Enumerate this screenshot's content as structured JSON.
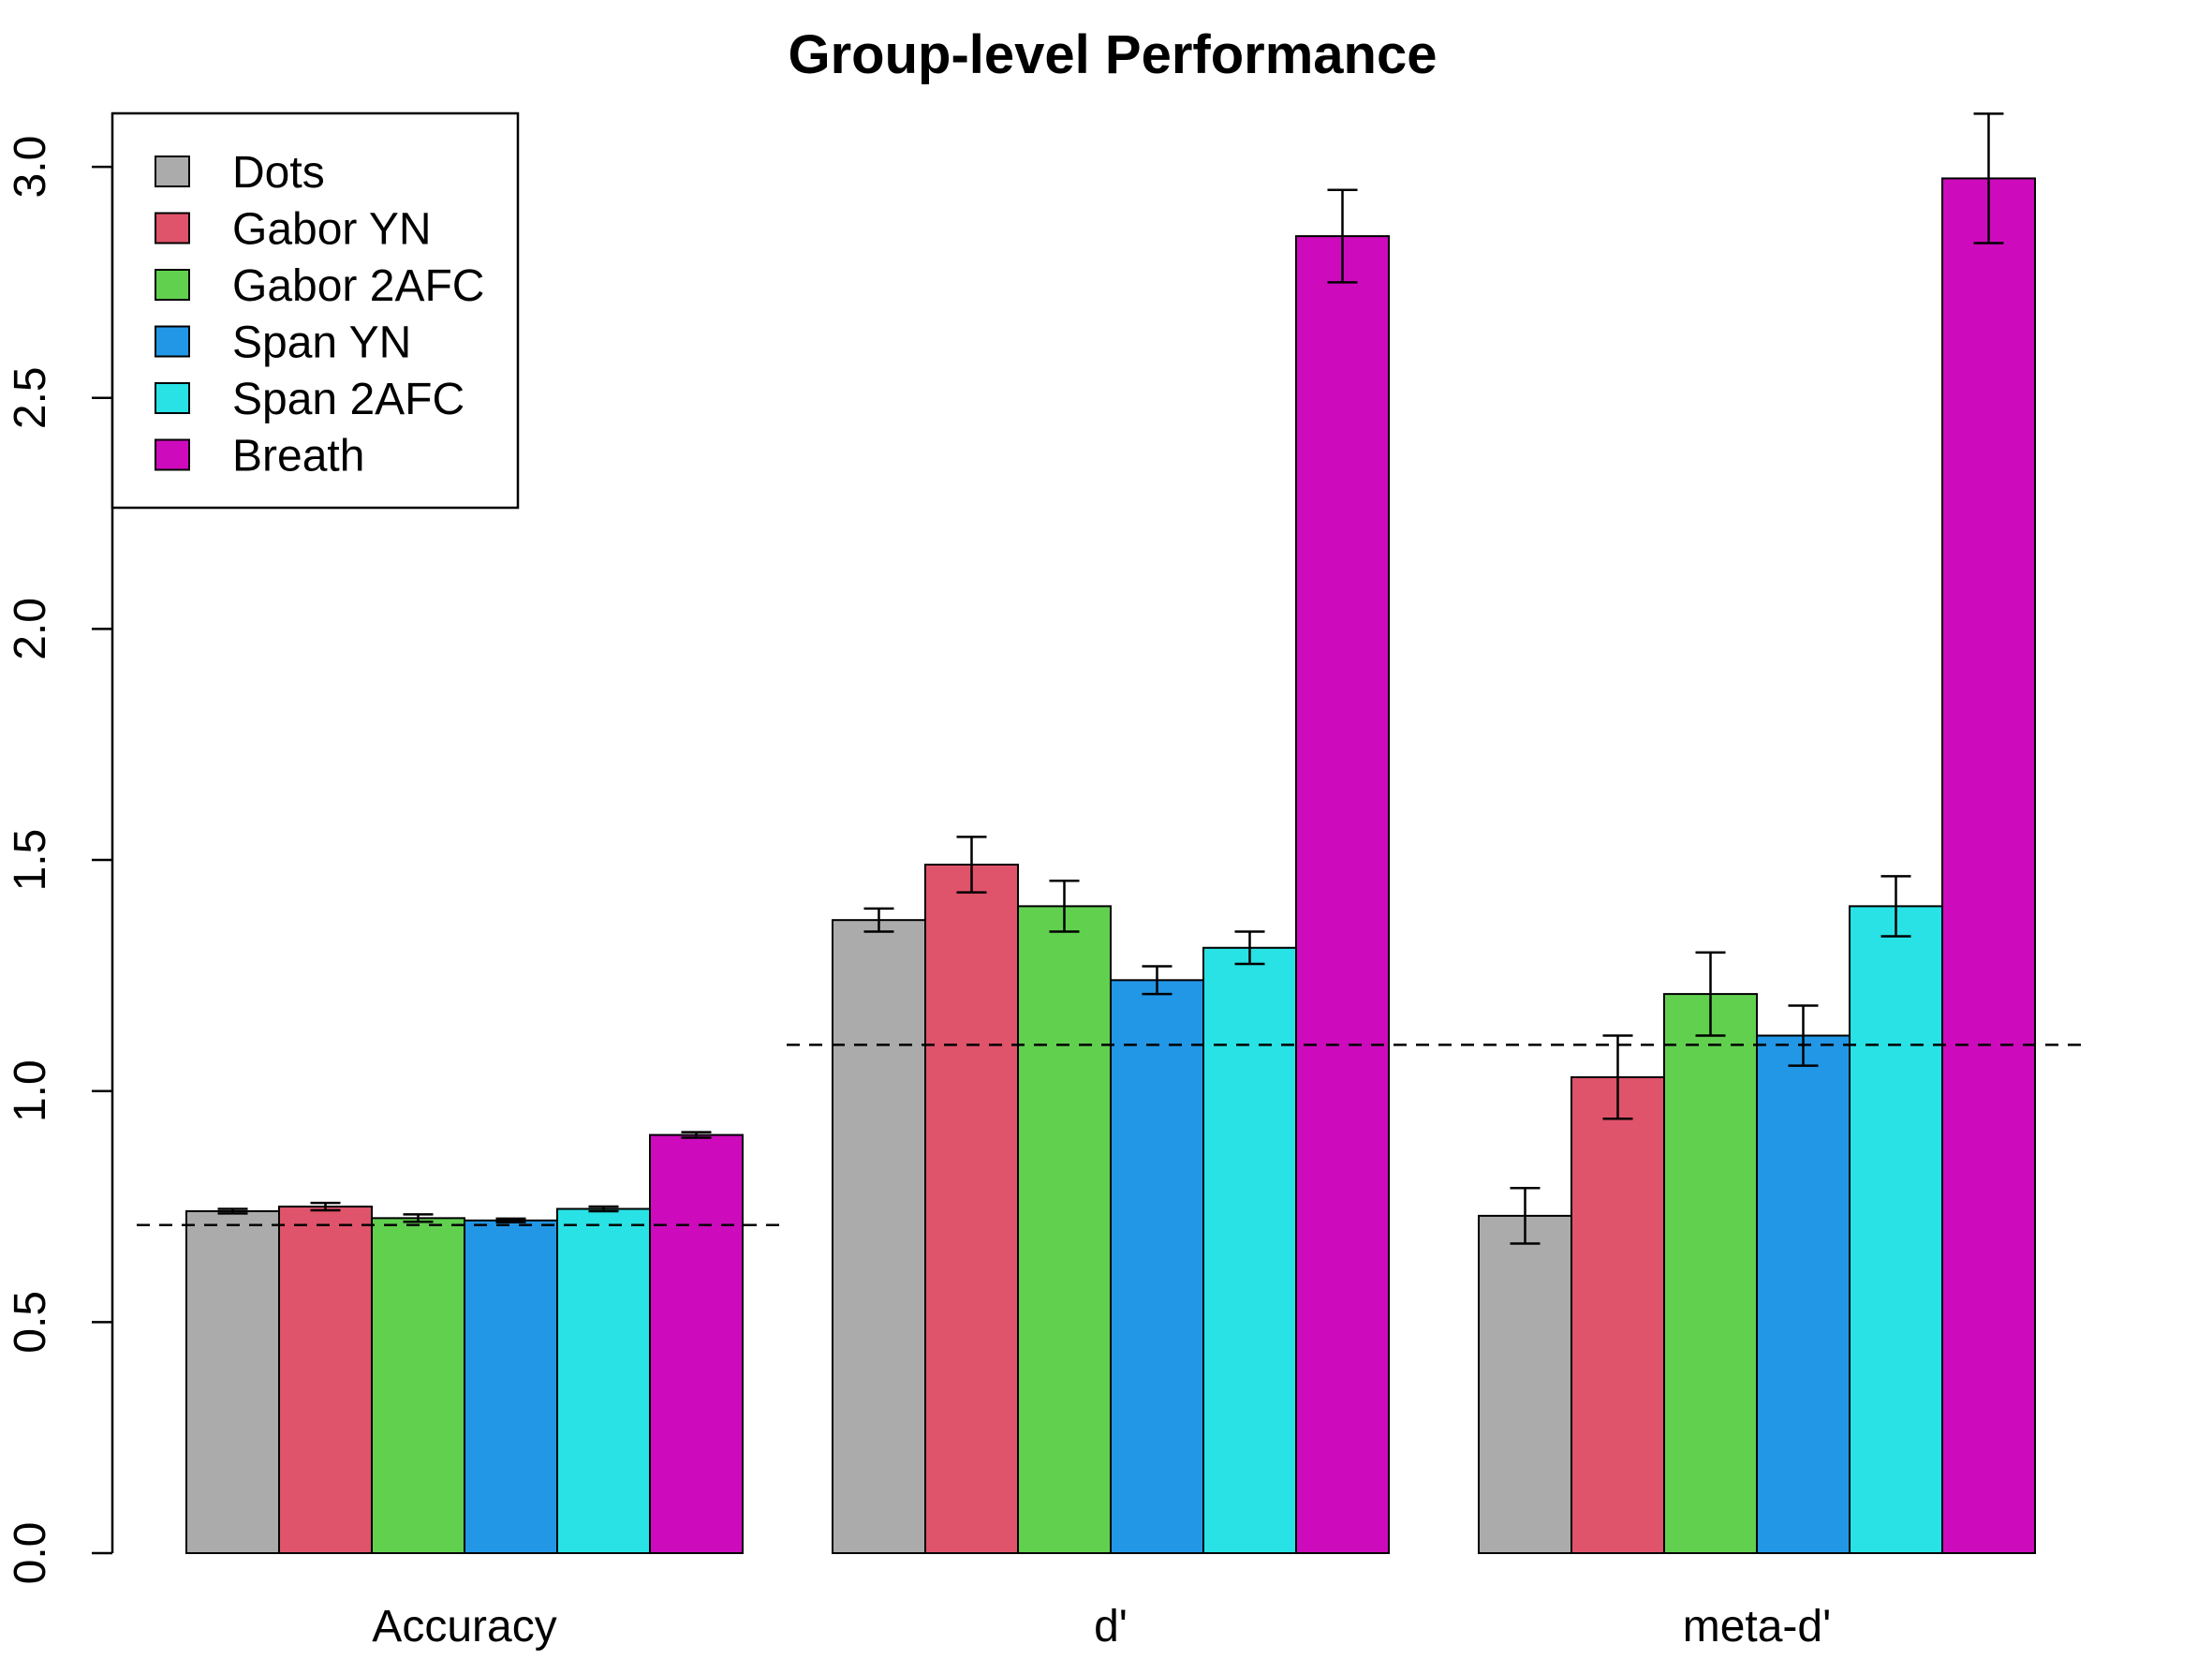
{
  "chart_data": {
    "type": "bar",
    "title": "Group-level Performance",
    "xlabel": "",
    "ylabel": "",
    "categories": [
      "Accuracy",
      "d'",
      "meta-d'"
    ],
    "ylim": [
      0,
      3.1
    ],
    "yticks": [
      "0.0",
      "0.5",
      "1.0",
      "1.5",
      "2.0",
      "2.5",
      "3.0"
    ],
    "grid": false,
    "legend_position": "top-left",
    "series": [
      {
        "name": "Dots",
        "color": "#ABABAB",
        "values": [
          0.74,
          1.37,
          0.73
        ],
        "errors": [
          0.005,
          0.025,
          0.06
        ]
      },
      {
        "name": "Gabor YN",
        "color": "#DF536B",
        "values": [
          0.75,
          1.49,
          1.03
        ],
        "errors": [
          0.008,
          0.06,
          0.09
        ]
      },
      {
        "name": "Gabor 2AFC",
        "color": "#61D04F",
        "values": [
          0.725,
          1.4,
          1.21
        ],
        "errors": [
          0.008,
          0.055,
          0.09
        ]
      },
      {
        "name": "Span YN",
        "color": "#2297E6",
        "values": [
          0.72,
          1.24,
          1.12
        ],
        "errors": [
          0.004,
          0.03,
          0.065
        ]
      },
      {
        "name": "Span 2AFC",
        "color": "#28E2E5",
        "values": [
          0.745,
          1.31,
          1.4
        ],
        "errors": [
          0.005,
          0.035,
          0.065
        ]
      },
      {
        "name": "Breath",
        "color": "#CD0BBC",
        "values": [
          0.905,
          2.85,
          2.975
        ],
        "errors": [
          0.006,
          0.1,
          0.14
        ]
      }
    ],
    "reference_lines": [
      {
        "category_index": 0,
        "value": 0.71
      },
      {
        "category_index": 1,
        "value": 1.1
      },
      {
        "category_index": 2,
        "value": 1.1
      }
    ]
  }
}
